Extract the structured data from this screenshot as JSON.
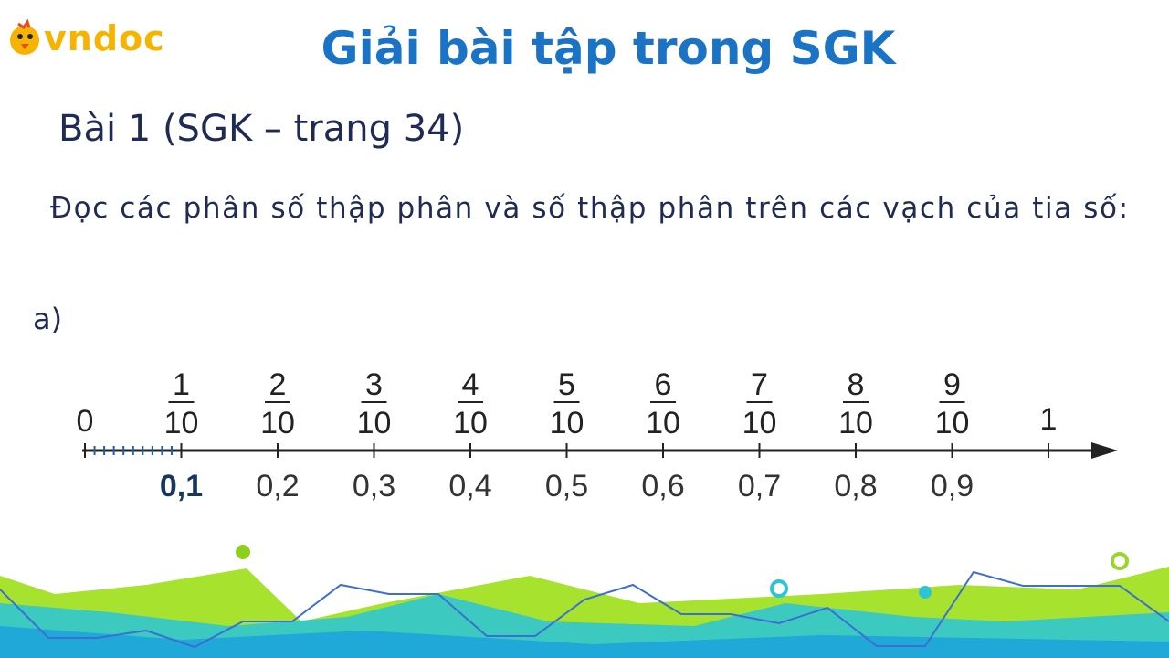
{
  "logo": "vndoc",
  "header": {
    "title": "Giải bài tập trong SGK"
  },
  "exercise": {
    "heading": "Bài 1 (SGK – trang 34)",
    "prompt": "Đọc các phân số thập phân và số thập phân trên các vạch của tia số:",
    "part": "a)"
  },
  "number_line": {
    "start": "0",
    "end": "1",
    "fractions": [
      {
        "numerator": "1",
        "denominator": "10"
      },
      {
        "numerator": "2",
        "denominator": "10"
      },
      {
        "numerator": "3",
        "denominator": "10"
      },
      {
        "numerator": "4",
        "denominator": "10"
      },
      {
        "numerator": "5",
        "denominator": "10"
      },
      {
        "numerator": "6",
        "denominator": "10"
      },
      {
        "numerator": "7",
        "denominator": "10"
      },
      {
        "numerator": "8",
        "denominator": "10"
      },
      {
        "numerator": "9",
        "denominator": "10"
      }
    ],
    "decimals": [
      "0,1",
      "0,2",
      "0,3",
      "0,4",
      "0,5",
      "0,6",
      "0,7",
      "0,8",
      "0,9"
    ]
  }
}
